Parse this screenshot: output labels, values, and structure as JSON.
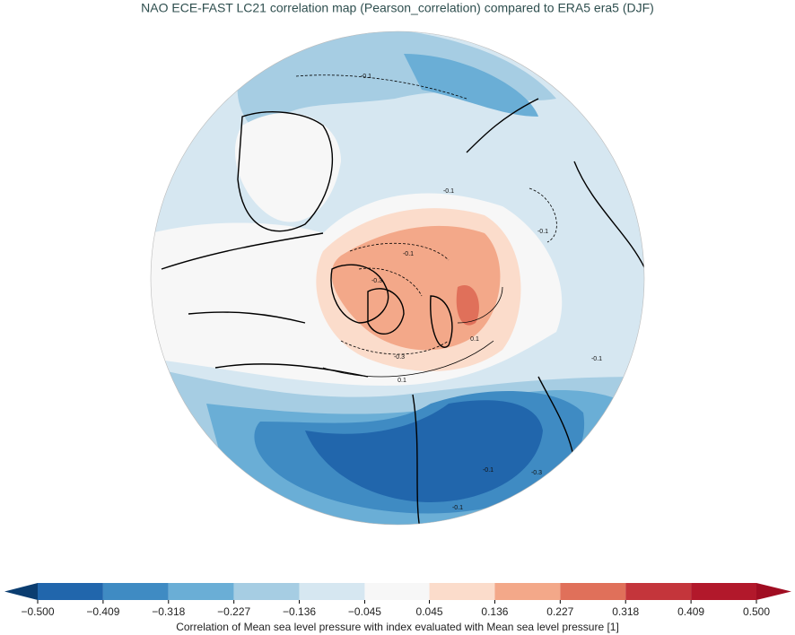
{
  "header": {
    "title": "NAO ECE-FAST LC21 correlation map (Pearson_correlation) compared to ERA5 era5 (DJF)"
  },
  "map": {
    "contour_labels": [
      "-0.1",
      "-0.1",
      "-0.1",
      "-0.1",
      "-0.3",
      "0.1",
      "-0.3",
      "0.1",
      "-0.1",
      "-0.1",
      "-0.1",
      "-0.3"
    ]
  },
  "colorbar": {
    "label": "Correlation of Mean sea level pressure with index evaluated with Mean sea level pressure [1]",
    "ticks": [
      {
        "value": -0.5,
        "label": "−0.500"
      },
      {
        "value": -0.409,
        "label": "−0.409"
      },
      {
        "value": -0.318,
        "label": "−0.318"
      },
      {
        "value": -0.227,
        "label": "−0.227"
      },
      {
        "value": -0.136,
        "label": "−0.136"
      },
      {
        "value": -0.045,
        "label": "−0.045"
      },
      {
        "value": 0.045,
        "label": "0.045"
      },
      {
        "value": 0.136,
        "label": "0.136"
      },
      {
        "value": 0.227,
        "label": "0.227"
      },
      {
        "value": 0.318,
        "label": "0.318"
      },
      {
        "value": 0.409,
        "label": "0.409"
      },
      {
        "value": 0.5,
        "label": "0.500"
      }
    ],
    "colors": [
      "#2166ac",
      "#3f8bc3",
      "#6aaed6",
      "#a6cde3",
      "#d6e7f1",
      "#f7f7f7",
      "#fbdccb",
      "#f3a889",
      "#e0705a",
      "#c4353b",
      "#b2182b"
    ],
    "extend_colors": [
      "#0b3d70",
      "#a00d22"
    ]
  }
}
